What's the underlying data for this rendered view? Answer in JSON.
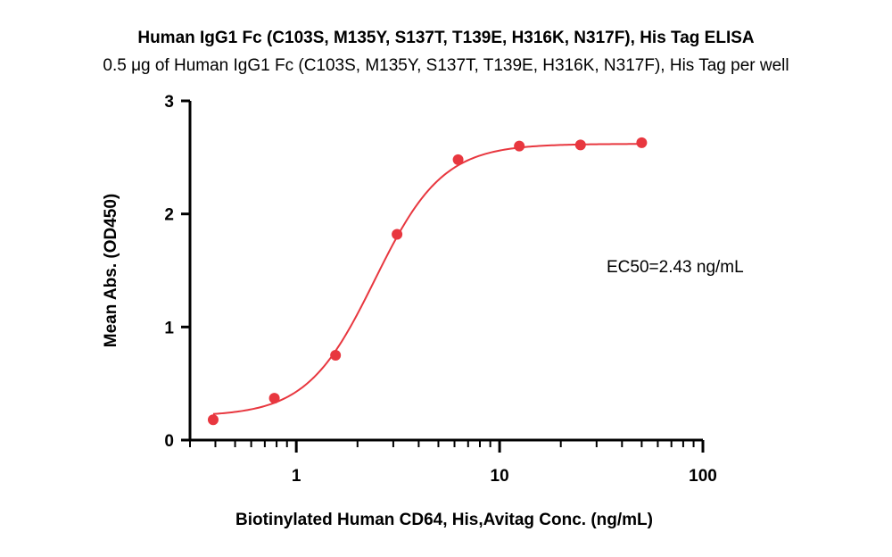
{
  "chart_data": {
    "type": "scatter",
    "title": "Human IgG1 Fc (C103S, M135Y, S137T, T139E, H316K, N317F), His Tag ELISA",
    "subtitle": "0.5 μg of Human IgG1 Fc (C103S, M135Y, S137T, T139E, H316K, N317F), His Tag per well",
    "xlabel": "Biotinylated Human CD64, His,Avitag Conc. (ng/mL)",
    "ylabel": "Mean Abs. (OD450)",
    "x_scale": "log",
    "xlim": [
      0.3,
      100
    ],
    "ylim": [
      0,
      3
    ],
    "x_ticks": [
      {
        "value": 1,
        "label": "1"
      },
      {
        "value": 10,
        "label": "10"
      },
      {
        "value": 100,
        "label": "100"
      }
    ],
    "y_ticks": [
      {
        "value": 0,
        "label": "0"
      },
      {
        "value": 1,
        "label": "1"
      },
      {
        "value": 2,
        "label": "2"
      },
      {
        "value": 3,
        "label": "3"
      }
    ],
    "series": [
      {
        "color": "#e8373f",
        "x": [
          0.39,
          0.78,
          1.56,
          3.13,
          6.25,
          12.5,
          25,
          50
        ],
        "y": [
          0.18,
          0.37,
          0.75,
          1.82,
          2.48,
          2.6,
          2.61,
          2.63
        ]
      }
    ],
    "fit": {
      "type": "4PL",
      "bottom": 0.21,
      "top": 2.62,
      "ec50": 2.43,
      "hill": 2.6
    },
    "annotation": "EC50=2.43 ng/mL",
    "grid": false,
    "legend": "none"
  }
}
